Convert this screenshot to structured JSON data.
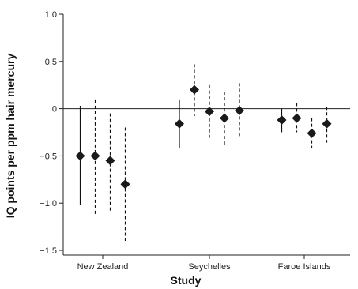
{
  "chart_data": {
    "type": "scatter",
    "xlabel": "Study",
    "ylabel": "IQ points per ppm hair mercury",
    "ylim": [
      -1.55,
      1.0
    ],
    "yticks": [
      1.0,
      0.5,
      0,
      -0.5,
      -1.0,
      -1.5
    ],
    "ytick_labels": [
      "1.0",
      "0.5",
      "0",
      "−0.5",
      "−1.0",
      "−1.5"
    ],
    "categories": [
      "New Zealand",
      "Seychelles",
      "Faroe Islands"
    ],
    "grid": false,
    "reference_line": 0,
    "groups": [
      {
        "category": "New Zealand",
        "estimates": [
          {
            "value": -0.5,
            "lower": -1.02,
            "upper": 0.03,
            "style": "solid"
          },
          {
            "value": -0.5,
            "lower": -1.12,
            "upper": 0.09,
            "style": "dashed"
          },
          {
            "value": -0.55,
            "lower": -1.1,
            "upper": -0.05,
            "style": "dashed"
          },
          {
            "value": -0.8,
            "lower": -1.4,
            "upper": -0.2,
            "style": "dashed"
          }
        ]
      },
      {
        "category": "Seychelles",
        "estimates": [
          {
            "value": -0.16,
            "lower": -0.42,
            "upper": 0.09,
            "style": "solid"
          },
          {
            "value": 0.2,
            "lower": -0.08,
            "upper": 0.47,
            "style": "dashed"
          },
          {
            "value": -0.03,
            "lower": -0.32,
            "upper": 0.25,
            "style": "dashed"
          },
          {
            "value": -0.1,
            "lower": -0.38,
            "upper": 0.18,
            "style": "dashed"
          },
          {
            "value": -0.02,
            "lower": -0.3,
            "upper": 0.27,
            "style": "dashed"
          }
        ]
      },
      {
        "category": "Faroe Islands",
        "estimates": [
          {
            "value": -0.12,
            "lower": -0.25,
            "upper": 0.0,
            "style": "solid"
          },
          {
            "value": -0.1,
            "lower": -0.25,
            "upper": 0.06,
            "style": "dashed"
          },
          {
            "value": -0.26,
            "lower": -0.42,
            "upper": -0.1,
            "style": "dashed"
          },
          {
            "value": -0.16,
            "lower": -0.36,
            "upper": 0.02,
            "style": "dashed"
          }
        ]
      }
    ],
    "colors": {
      "marker": "#1a1a1a",
      "line": "#111111"
    }
  }
}
